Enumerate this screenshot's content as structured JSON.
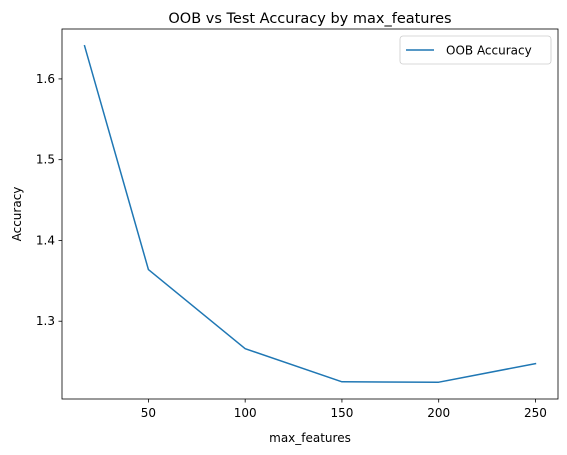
{
  "chart_data": {
    "type": "line",
    "title": "OOB vs Test Accuracy by max_features",
    "xlabel": "max_features",
    "ylabel": "Accuracy",
    "x": [
      17,
      50,
      100,
      150,
      200,
      250
    ],
    "series": [
      {
        "name": "OOB Accuracy",
        "values": [
          1.641,
          1.364,
          1.266,
          1.225,
          1.2245,
          1.2475
        ],
        "color": "#1f77b4"
      }
    ],
    "xticks": [
      50,
      100,
      150,
      200,
      250
    ],
    "xtick_labels": [
      "50",
      "100",
      "150",
      "200",
      "250"
    ],
    "yticks": [
      1.3,
      1.4,
      1.5,
      1.6
    ],
    "ytick_labels": [
      "1.3",
      "1.4",
      "1.5",
      "1.6"
    ],
    "xlim": [
      5.35,
      261.65
    ],
    "ylim": [
      1.2037,
      1.6618
    ],
    "grid": false,
    "legend_position": "upper right"
  }
}
